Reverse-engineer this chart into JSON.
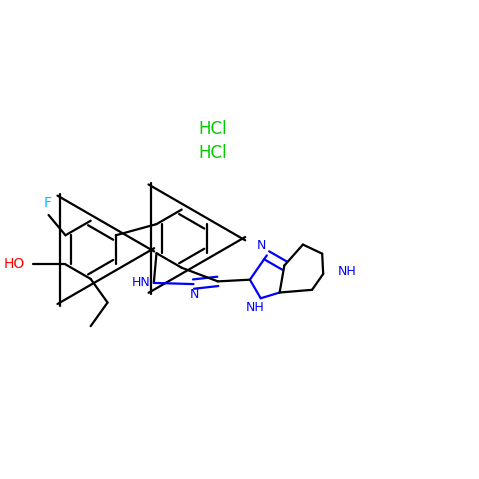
{
  "bg_color": "#ffffff",
  "bond_color": "#000000",
  "n_color": "#0000ff",
  "o_color": "#ff0000",
  "f_color": "#00bfff",
  "hcl_color": "#00cc00",
  "bond_width": 1.6,
  "hcl1": [
    0.435,
    0.735
  ],
  "hcl2": [
    0.435,
    0.685
  ],
  "hcl_text1": "HCl",
  "hcl_text2": "HCl",
  "hcl_fontsize": 12
}
